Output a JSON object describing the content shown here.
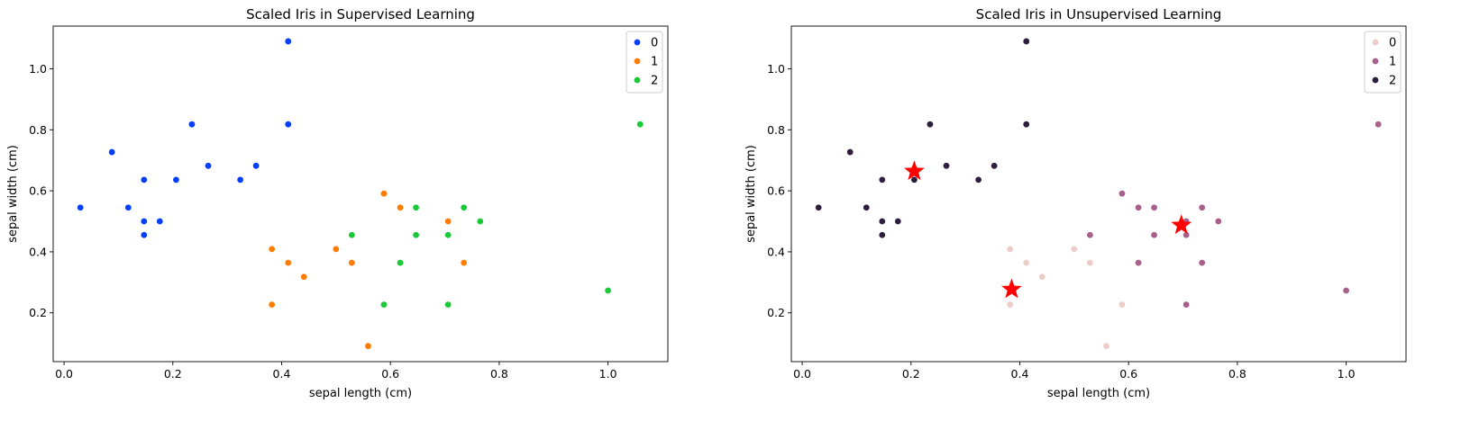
{
  "chart_data": [
    {
      "type": "scatter",
      "title": "Scaled Iris in Supervised Learning",
      "xlabel": "sepal length (cm)",
      "ylabel": "sepal width (cm)",
      "xlim": [
        -0.02,
        1.11
      ],
      "ylim": [
        0.04,
        1.14
      ],
      "xticks": [
        0.0,
        0.2,
        0.4,
        0.6,
        0.8,
        1.0
      ],
      "yticks": [
        0.2,
        0.4,
        0.6,
        0.8,
        1.0
      ],
      "xtick_labels": [
        "0.0",
        "0.2",
        "0.4",
        "0.6",
        "0.8",
        "1.0"
      ],
      "ytick_labels": [
        "0.2",
        "0.4",
        "0.6",
        "0.8",
        "1.0"
      ],
      "legend_position": "top-right",
      "series": [
        {
          "name": "0",
          "color": "#023eff",
          "points": [
            [
              0.03,
              0.545
            ],
            [
              0.088,
              0.727
            ],
            [
              0.118,
              0.545
            ],
            [
              0.147,
              0.636
            ],
            [
              0.147,
              0.5
            ],
            [
              0.147,
              0.455
            ],
            [
              0.176,
              0.5
            ],
            [
              0.206,
              0.636
            ],
            [
              0.235,
              0.818
            ],
            [
              0.265,
              0.682
            ],
            [
              0.324,
              0.636
            ],
            [
              0.353,
              0.682
            ],
            [
              0.412,
              0.818
            ],
            [
              0.412,
              1.09
            ]
          ]
        },
        {
          "name": "1",
          "color": "#ff7c00",
          "points": [
            [
              0.382,
              0.409
            ],
            [
              0.382,
              0.227
            ],
            [
              0.412,
              0.364
            ],
            [
              0.441,
              0.318
            ],
            [
              0.5,
              0.409
            ],
            [
              0.529,
              0.364
            ],
            [
              0.559,
              0.091
            ],
            [
              0.588,
              0.591
            ],
            [
              0.618,
              0.545
            ],
            [
              0.706,
              0.5
            ],
            [
              0.735,
              0.364
            ]
          ]
        },
        {
          "name": "2",
          "color": "#1ac938",
          "points": [
            [
              0.529,
              0.455
            ],
            [
              0.588,
              0.227
            ],
            [
              0.618,
              0.364
            ],
            [
              0.647,
              0.545
            ],
            [
              0.647,
              0.455
            ],
            [
              0.706,
              0.455
            ],
            [
              0.706,
              0.227
            ],
            [
              0.735,
              0.545
            ],
            [
              0.765,
              0.5
            ],
            [
              1.0,
              0.273
            ],
            [
              1.059,
              0.818
            ]
          ]
        }
      ]
    },
    {
      "type": "scatter",
      "title": "Scaled Iris in Unsupervised Learning",
      "xlabel": "sepal length (cm)",
      "ylabel": "sepal width (cm)",
      "xlim": [
        -0.02,
        1.11
      ],
      "ylim": [
        0.04,
        1.14
      ],
      "xticks": [
        0.0,
        0.2,
        0.4,
        0.6,
        0.8,
        1.0
      ],
      "yticks": [
        0.2,
        0.4,
        0.6,
        0.8,
        1.0
      ],
      "xtick_labels": [
        "0.0",
        "0.2",
        "0.4",
        "0.6",
        "0.8",
        "1.0"
      ],
      "ytick_labels": [
        "0.2",
        "0.4",
        "0.6",
        "0.8",
        "1.0"
      ],
      "legend_position": "top-right",
      "series": [
        {
          "name": "0",
          "color": "#eccdc7",
          "points": [
            [
              0.382,
              0.409
            ],
            [
              0.382,
              0.227
            ],
            [
              0.412,
              0.364
            ],
            [
              0.441,
              0.318
            ],
            [
              0.5,
              0.409
            ],
            [
              0.529,
              0.364
            ],
            [
              0.559,
              0.091
            ],
            [
              0.588,
              0.227
            ]
          ]
        },
        {
          "name": "1",
          "color": "#a8608a",
          "points": [
            [
              0.529,
              0.455
            ],
            [
              0.588,
              0.591
            ],
            [
              0.618,
              0.545
            ],
            [
              0.618,
              0.364
            ],
            [
              0.647,
              0.545
            ],
            [
              0.647,
              0.455
            ],
            [
              0.706,
              0.5
            ],
            [
              0.706,
              0.455
            ],
            [
              0.706,
              0.227
            ],
            [
              0.735,
              0.545
            ],
            [
              0.735,
              0.364
            ],
            [
              0.765,
              0.5
            ],
            [
              1.0,
              0.273
            ],
            [
              1.059,
              0.818
            ]
          ]
        },
        {
          "name": "2",
          "color": "#2d1e3e",
          "points": [
            [
              0.03,
              0.545
            ],
            [
              0.088,
              0.727
            ],
            [
              0.118,
              0.545
            ],
            [
              0.147,
              0.636
            ],
            [
              0.147,
              0.5
            ],
            [
              0.147,
              0.455
            ],
            [
              0.176,
              0.5
            ],
            [
              0.206,
              0.636
            ],
            [
              0.235,
              0.818
            ],
            [
              0.265,
              0.682
            ],
            [
              0.324,
              0.636
            ],
            [
              0.353,
              0.682
            ],
            [
              0.412,
              0.818
            ],
            [
              0.412,
              1.09
            ]
          ]
        }
      ],
      "centroids": {
        "color": "#ff0000",
        "points": [
          [
            0.206,
            0.664
          ],
          [
            0.385,
            0.277
          ],
          [
            0.697,
            0.487
          ]
        ]
      }
    }
  ]
}
